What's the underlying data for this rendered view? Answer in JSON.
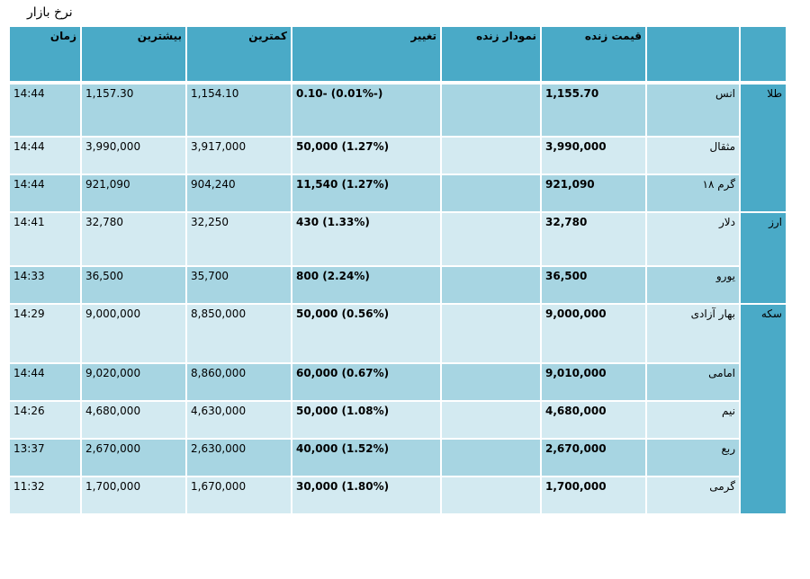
{
  "title": "نرخ بازار",
  "colors": {
    "header": "#4aaac7",
    "row_dark": "#a7d5e2",
    "row_light": "#d3eaf1"
  },
  "table": {
    "headers": {
      "category": "",
      "name": "",
      "price": "قیمت زنده",
      "chart": "نمودار زنده",
      "change": "تغییر",
      "low": "کمترین",
      "high": "بیشترین",
      "time": "زمان"
    },
    "groups": [
      {
        "category": "طلا",
        "rows": [
          {
            "name": "انس",
            "price": "1,155.70",
            "change": "(-0.01%) -0.10",
            "low": "1,154.10",
            "high": "1,157.30",
            "time": "14:44"
          },
          {
            "name": "مثقال",
            "price": "3,990,000",
            "change": "(1.27%) 50,000",
            "low": "3,917,000",
            "high": "3,990,000",
            "time": "14:44"
          },
          {
            "name": "گرم ۱۸",
            "price": "921,090",
            "change": "(1.27%) 11,540",
            "low": "904,240",
            "high": "921,090",
            "time": "14:44"
          }
        ]
      },
      {
        "category": "ارز",
        "rows": [
          {
            "name": "دلار",
            "price": "32,780",
            "change": "(1.33%) 430",
            "low": "32,250",
            "high": "32,780",
            "time": "14:41"
          },
          {
            "name": "یورو",
            "price": "36,500",
            "change": "(2.24%) 800",
            "low": "35,700",
            "high": "36,500",
            "time": "14:33"
          }
        ]
      },
      {
        "category": "سکه",
        "rows": [
          {
            "name": "بهار آزادی",
            "price": "9,000,000",
            "change": "(0.56%) 50,000",
            "low": "8,850,000",
            "high": "9,000,000",
            "time": "14:29"
          },
          {
            "name": "امامی",
            "price": "9,010,000",
            "change": "(0.67%) 60,000",
            "low": "8,860,000",
            "high": "9,020,000",
            "time": "14:44"
          },
          {
            "name": "نیم",
            "price": "4,680,000",
            "change": "(1.08%) 50,000",
            "low": "4,630,000",
            "high": "4,680,000",
            "time": "14:26"
          },
          {
            "name": "ربع",
            "price": "2,670,000",
            "change": "(1.52%) 40,000",
            "low": "2,630,000",
            "high": "2,670,000",
            "time": "13:37"
          },
          {
            "name": "گرمی",
            "price": "1,700,000",
            "change": "(1.80%) 30,000",
            "low": "1,670,000",
            "high": "1,700,000",
            "time": "11:32"
          }
        ]
      }
    ]
  }
}
